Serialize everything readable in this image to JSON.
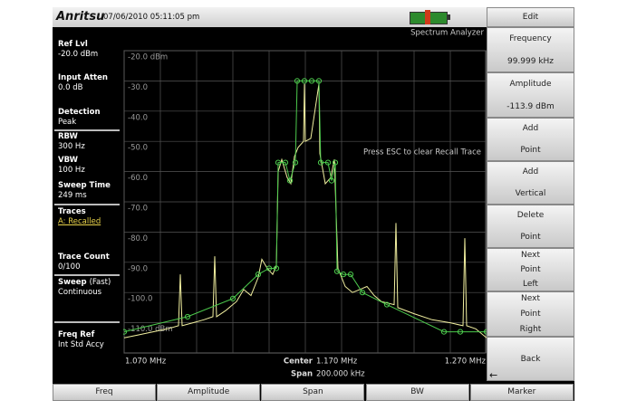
{
  "header": {
    "logo": "Anritsu",
    "datetime": "07/06/2010 05:11:05 pm",
    "mode": "Spectrum Analyzer"
  },
  "left_panel": [
    {
      "label": "Ref Lvl",
      "value": "-20.0 dBm"
    },
    {
      "label": "Input Atten",
      "value": "0.0 dB"
    },
    {
      "label": "Detection",
      "value": "Peak"
    },
    {
      "label": "RBW",
      "value": "300 Hz"
    },
    {
      "label": "VBW",
      "value": "100 Hz"
    },
    {
      "label": "Sweep Time",
      "value": "249 ms"
    },
    {
      "label": "Traces",
      "value": "A: Recalled"
    },
    {
      "label": "Trace Count",
      "value": "0/100"
    },
    {
      "label": "Sweep",
      "qualifier": "(Fast)",
      "value": "Continuous"
    },
    {
      "label": "Freq Ref",
      "value": "Int Std Accy"
    }
  ],
  "softkeys": {
    "title": "Edit",
    "keys": [
      [
        "Frequency",
        "99.999 kHz"
      ],
      [
        "Amplitude",
        "-113.9 dBm"
      ],
      [
        "Add",
        "Point"
      ],
      [
        "Add",
        "Vertical"
      ],
      [
        "Delete",
        "Point"
      ],
      [
        "Next",
        "Point",
        "Left"
      ],
      [
        "Next",
        "Point",
        "Right"
      ],
      [
        "Back"
      ]
    ]
  },
  "bottom_keys": [
    "Freq",
    "Amplitude",
    "Span",
    "BW",
    "Marker"
  ],
  "chart_data": {
    "type": "line",
    "annotation": "Press ESC to clear Recall Trace",
    "center_label": "Center",
    "center_value": "1.170 MHz",
    "span_label": "Span",
    "span_value": "200.000 kHz",
    "xlim": [
      1.07,
      1.27
    ],
    "xticks": [
      {
        "value": 1.07,
        "label": "1.070 MHz"
      },
      {
        "value": 1.27,
        "label": "1.270 MHz"
      }
    ],
    "xgrid": [
      1.07,
      1.09,
      1.11,
      1.13,
      1.15,
      1.17,
      1.19,
      1.21,
      1.23,
      1.25,
      1.27
    ],
    "ylim": [
      -120,
      -20
    ],
    "yticks": [
      {
        "value": -20,
        "label": "-20.0 dBm"
      },
      {
        "value": -30,
        "label": "-30.0"
      },
      {
        "value": -40,
        "label": "-40.0"
      },
      {
        "value": -50,
        "label": "-50.0"
      },
      {
        "value": -60,
        "label": "-60.0"
      },
      {
        "value": -70,
        "label": "-70.0"
      },
      {
        "value": -80,
        "label": "-80.0"
      },
      {
        "value": -90,
        "label": "-90.0"
      },
      {
        "value": -100,
        "label": "-100.0"
      },
      {
        "value": -110,
        "label": "-110.0 dBm"
      }
    ],
    "grid": true,
    "series": [
      {
        "color": "#f2f0a0",
        "markers": false,
        "x": [
          1.07,
          1.078,
          1.086,
          1.094,
          1.1,
          1.101,
          1.102,
          1.108,
          1.114,
          1.119,
          1.12,
          1.121,
          1.126,
          1.132,
          1.136,
          1.14,
          1.144,
          1.146,
          1.149,
          1.152,
          1.154,
          1.155,
          1.157,
          1.16,
          1.162,
          1.164,
          1.166,
          1.169,
          1.1695,
          1.17,
          1.173,
          1.1775,
          1.178,
          1.181,
          1.184,
          1.186,
          1.188,
          1.192,
          1.196,
          1.2,
          1.204,
          1.208,
          1.212,
          1.219,
          1.22,
          1.221,
          1.23,
          1.24,
          1.25,
          1.257,
          1.258,
          1.259,
          1.264,
          1.27
        ],
        "values": [
          -115,
          -114,
          -113,
          -112,
          -111,
          -94,
          -111,
          -110,
          -109,
          -108,
          -88,
          -108,
          -106,
          -103,
          -99,
          -101,
          -95,
          -89,
          -92,
          -94,
          -91,
          -60,
          -56,
          -62,
          -64,
          -55,
          -52,
          -50,
          -31,
          -50,
          -49,
          -31,
          -54,
          -64,
          -62,
          -56,
          -92,
          -98,
          -100,
          -99,
          -98,
          -101,
          -103,
          -104,
          -77,
          -105,
          -107,
          -109,
          -110,
          -111,
          -82,
          -111,
          -112,
          -115
        ]
      },
      {
        "color": "#4cc94c",
        "markers": true,
        "x": [
          1.07,
          1.105,
          1.13,
          1.144,
          1.15,
          1.154,
          1.155,
          1.159,
          1.1615,
          1.1645,
          1.1655,
          1.1695,
          1.1735,
          1.1775,
          1.1785,
          1.1825,
          1.1845,
          1.1865,
          1.1875,
          1.191,
          1.195,
          1.2015,
          1.215,
          1.2465,
          1.2555,
          1.27
        ],
        "values": [
          -113,
          -108,
          -102,
          -94,
          -92,
          -92,
          -57,
          -57,
          -63,
          -57,
          -30,
          -30,
          -30,
          -30,
          -57,
          -57,
          -63,
          -57,
          -93,
          -94,
          -94,
          -100,
          -104,
          -113,
          -113,
          -113
        ]
      }
    ]
  }
}
